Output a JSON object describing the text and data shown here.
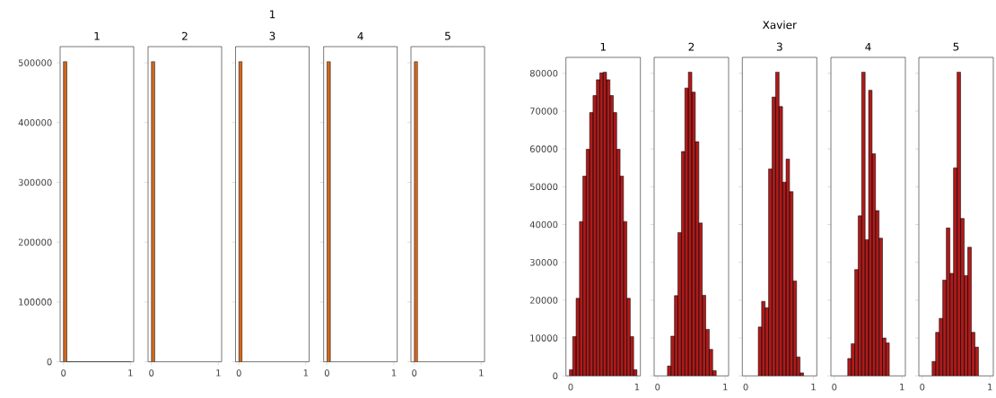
{
  "chart_data": [
    {
      "type": "histogram",
      "title": "1",
      "color": "#d2691e",
      "bins": [
        0,
        0.05,
        0.1,
        0.15,
        0.2,
        0.25,
        0.3,
        0.35,
        0.4,
        0.45,
        0.5,
        0.55,
        0.6,
        0.65,
        0.7,
        0.75,
        0.8,
        0.85,
        0.9,
        0.95,
        1.0
      ],
      "values": [
        502000,
        0,
        0,
        0,
        0,
        0,
        0,
        0,
        0,
        0,
        0,
        0,
        0,
        0,
        0,
        0,
        0,
        0,
        0,
        0
      ],
      "xlim": [
        -0.05,
        1.05
      ],
      "ylim": [
        0,
        527000
      ],
      "xticks": [
        0,
        1
      ],
      "yticks": [
        0,
        100000,
        200000,
        300000,
        400000,
        500000
      ]
    },
    {
      "type": "histogram",
      "title": "2",
      "color": "#d2691e",
      "bins": [
        0,
        0.05
      ],
      "values": [
        502000
      ],
      "xlim": [
        -0.05,
        1.05
      ],
      "ylim": [
        0,
        527000
      ],
      "xticks": [
        0,
        1
      ],
      "yticks": [
        0,
        100000,
        200000,
        300000,
        400000,
        500000
      ],
      "tick_labels": "x"
    },
    {
      "type": "histogram",
      "title": "3",
      "annotations": [
        "1"
      ],
      "color": "#d2691e",
      "bins": [
        0,
        0.05
      ],
      "values": [
        502000
      ],
      "xlim": [
        -0.05,
        1.05
      ],
      "ylim": [
        0,
        527000
      ],
      "xticks": [
        0,
        1
      ],
      "yticks": [
        0,
        100000,
        200000,
        300000,
        400000,
        500000
      ],
      "tick_labels": "x"
    },
    {
      "type": "histogram",
      "title": "4",
      "color": "#d2691e",
      "bins": [
        0,
        0.05
      ],
      "values": [
        502000
      ],
      "xlim": [
        -0.05,
        1.05
      ],
      "ylim": [
        0,
        527000
      ],
      "xticks": [
        0,
        1
      ],
      "yticks": [
        0,
        100000,
        200000,
        300000,
        400000,
        500000
      ],
      "tick_labels": "x"
    },
    {
      "type": "histogram",
      "title": "5",
      "color": "#d2691e",
      "bins": [
        0,
        0.05
      ],
      "values": [
        502000
      ],
      "xlim": [
        -0.05,
        1.05
      ],
      "ylim": [
        0,
        527000
      ],
      "xticks": [
        0,
        1
      ],
      "yticks": [
        0,
        100000,
        200000,
        300000,
        400000,
        500000
      ],
      "tick_labels": "x"
    },
    {
      "type": "histogram",
      "title": "1",
      "color": "#b01a1a",
      "bins": [
        -0.02,
        0.031,
        0.082,
        0.133,
        0.184,
        0.235,
        0.286,
        0.337,
        0.388,
        0.439,
        0.49,
        0.541,
        0.592,
        0.643,
        0.694,
        0.745,
        0.796,
        0.847,
        0.898,
        0.949,
        1.0
      ],
      "values": [
        1600,
        10400,
        20500,
        40800,
        52800,
        59900,
        69600,
        74100,
        78300,
        80100,
        80300,
        78300,
        74100,
        69600,
        59900,
        52800,
        40800,
        20500,
        10400,
        1600
      ],
      "xlim": [
        -0.071,
        1.051
      ],
      "ylim": [
        0,
        84200
      ],
      "xticks": [
        0,
        1
      ],
      "yticks": [
        0,
        10000,
        20000,
        30000,
        40000,
        50000,
        60000,
        70000,
        80000
      ]
    },
    {
      "type": "histogram",
      "title": "2",
      "color": "#b01a1a",
      "bins": [
        0.147,
        0.198,
        0.25,
        0.301,
        0.353,
        0.404,
        0.455,
        0.507,
        0.558,
        0.61,
        0.661,
        0.712,
        0.764,
        0.815,
        0.867
      ],
      "values": [
        2600,
        10500,
        21200,
        37900,
        59300,
        76100,
        80300,
        75000,
        61900,
        40400,
        21300,
        12300,
        7000,
        1400
      ],
      "xlim": [
        -0.05,
        1.05
      ],
      "ylim": [
        0,
        84200
      ],
      "xticks": [
        0,
        1
      ],
      "yticks": [
        0,
        10000,
        20000,
        30000,
        40000,
        50000,
        60000,
        70000,
        80000
      ],
      "tick_labels": "x"
    },
    {
      "type": "histogram",
      "title": "3",
      "annotations": [
        "Xavier"
      ],
      "color": "#b01a1a",
      "bins": [
        0.183,
        0.235,
        0.286,
        0.338,
        0.389,
        0.441,
        0.493,
        0.544,
        0.596,
        0.647,
        0.699,
        0.751,
        0.802,
        0.854
      ],
      "values": [
        12900,
        19700,
        18000,
        54700,
        73700,
        80300,
        71200,
        51200,
        57300,
        48700,
        25100,
        5000,
        800
      ],
      "xlim": [
        -0.05,
        1.05
      ],
      "ylim": [
        0,
        84200
      ],
      "xticks": [
        0,
        1
      ],
      "yticks": [
        0,
        10000,
        20000,
        30000,
        40000,
        50000,
        60000,
        70000,
        80000
      ],
      "tick_labels": "x"
    },
    {
      "type": "histogram",
      "title": "4",
      "color": "#b01a1a",
      "bins": [
        0.199,
        0.25,
        0.302,
        0.353,
        0.404,
        0.456,
        0.507,
        0.558,
        0.609,
        0.661,
        0.712,
        0.763,
        0.814
      ],
      "values": [
        4600,
        8500,
        28100,
        42300,
        80300,
        36000,
        75500,
        58700,
        43700,
        36400,
        10000,
        8700
      ],
      "xlim": [
        -0.05,
        1.05
      ],
      "ylim": [
        0,
        84200
      ],
      "xticks": [
        0,
        1
      ],
      "yticks": [
        0,
        10000,
        20000,
        30000,
        40000,
        50000,
        60000,
        70000,
        80000
      ],
      "tick_labels": "x"
    },
    {
      "type": "histogram",
      "title": "5",
      "color": "#b01a1a",
      "bins": [
        0.145,
        0.198,
        0.251,
        0.303,
        0.356,
        0.409,
        0.462,
        0.515,
        0.567,
        0.62,
        0.673,
        0.726,
        0.779,
        0.832
      ],
      "values": [
        3800,
        11500,
        15200,
        25300,
        39100,
        27100,
        55000,
        80300,
        41600,
        26500,
        34000,
        11500,
        7600
      ],
      "xlim": [
        -0.05,
        1.05
      ],
      "ylim": [
        0,
        84200
      ],
      "xticks": [
        0,
        1
      ],
      "yticks": [
        0,
        10000,
        20000,
        30000,
        40000,
        50000,
        60000,
        70000,
        80000
      ],
      "tick_labels": "x"
    }
  ]
}
